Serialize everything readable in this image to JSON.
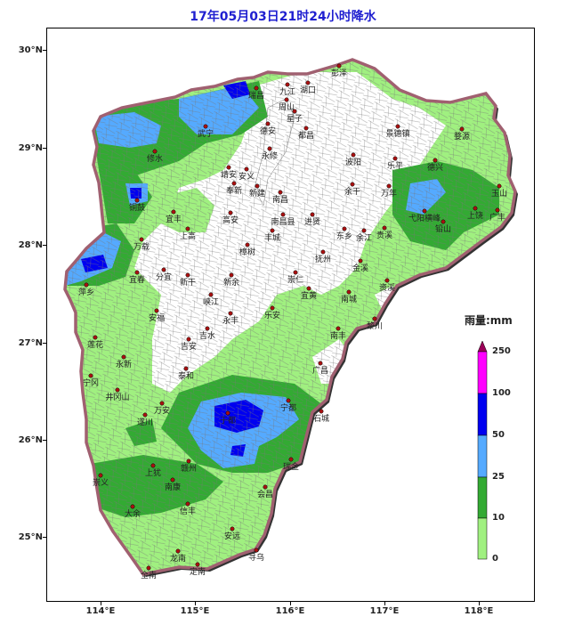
{
  "title": "17年05月03日21时24小时降水",
  "axes": {
    "lat_labels": [
      "30°N",
      "29°N",
      "28°N",
      "27°N",
      "26°N",
      "25°N"
    ],
    "lon_labels": [
      "114°E",
      "115°E",
      "116°E",
      "117°E",
      "118°E"
    ]
  },
  "legend": {
    "title": "雨量:mm",
    "labels": [
      "250",
      "100",
      "50",
      "25",
      "10",
      "0"
    ],
    "colors": [
      "#9b0058",
      "#ff00ff",
      "#0000f0",
      "#55aaff",
      "#33aa33",
      "#a0f080"
    ]
  },
  "colors": {
    "province_fill": "#a0f080",
    "province_border": "#a06070",
    "county_line": "#777777",
    "city_marker": "#aa1111"
  },
  "cities": [
    {
      "name": "彭泽"
    },
    {
      "name": "瑞昌"
    },
    {
      "name": "九江"
    },
    {
      "name": "湖口"
    },
    {
      "name": "周山"
    },
    {
      "name": "星子"
    },
    {
      "name": "武宁"
    },
    {
      "name": "德安"
    },
    {
      "name": "都昌"
    },
    {
      "name": "景德镇"
    },
    {
      "name": "婺源"
    },
    {
      "name": "修水"
    },
    {
      "name": "永修"
    },
    {
      "name": "波阳"
    },
    {
      "name": "乐平"
    },
    {
      "name": "德兴"
    },
    {
      "name": "靖安"
    },
    {
      "name": "安义"
    },
    {
      "name": "奉新"
    },
    {
      "name": "新建"
    },
    {
      "name": "余干"
    },
    {
      "name": "万年"
    },
    {
      "name": "玉山"
    },
    {
      "name": "铜鼓"
    },
    {
      "name": "南昌"
    },
    {
      "name": "弋阳横峰"
    },
    {
      "name": "上饶"
    },
    {
      "name": "广丰"
    },
    {
      "name": "宜丰"
    },
    {
      "name": "高安"
    },
    {
      "name": "南昌县"
    },
    {
      "name": "进贤"
    },
    {
      "name": "上高"
    },
    {
      "name": "东乡"
    },
    {
      "name": "余江"
    },
    {
      "name": "贵溪"
    },
    {
      "name": "铅山"
    },
    {
      "name": "丰城"
    },
    {
      "name": "万载"
    },
    {
      "name": "樟树"
    },
    {
      "name": "抚州"
    },
    {
      "name": "宜春"
    },
    {
      "name": "分宜"
    },
    {
      "name": "新余"
    },
    {
      "name": "金溪"
    },
    {
      "name": "新干"
    },
    {
      "name": "崇仁"
    },
    {
      "name": "萍乡"
    },
    {
      "name": "资溪"
    },
    {
      "name": "峡江"
    },
    {
      "name": "宜黄"
    },
    {
      "name": "南城"
    },
    {
      "name": "安福"
    },
    {
      "name": "乐安"
    },
    {
      "name": "黎川"
    },
    {
      "name": "莲花"
    },
    {
      "name": "吉水"
    },
    {
      "name": "永丰"
    },
    {
      "name": "吉安"
    },
    {
      "name": "南丰"
    },
    {
      "name": "永新"
    },
    {
      "name": "广昌"
    },
    {
      "name": "泰和"
    },
    {
      "name": "宁冈"
    },
    {
      "name": "井冈山"
    },
    {
      "name": "万安"
    },
    {
      "name": "宁都"
    },
    {
      "name": "遂川"
    },
    {
      "name": "石城"
    },
    {
      "name": "于都"
    },
    {
      "name": "赣州"
    },
    {
      "name": "瑞金"
    },
    {
      "name": "上犹"
    },
    {
      "name": "崇义"
    },
    {
      "name": "南康"
    },
    {
      "name": "会昌"
    },
    {
      "name": "大余"
    },
    {
      "name": "信丰"
    },
    {
      "name": "安远"
    },
    {
      "name": "龙南"
    },
    {
      "name": "寻乌"
    },
    {
      "name": "全南"
    },
    {
      "name": "定南"
    }
  ]
}
